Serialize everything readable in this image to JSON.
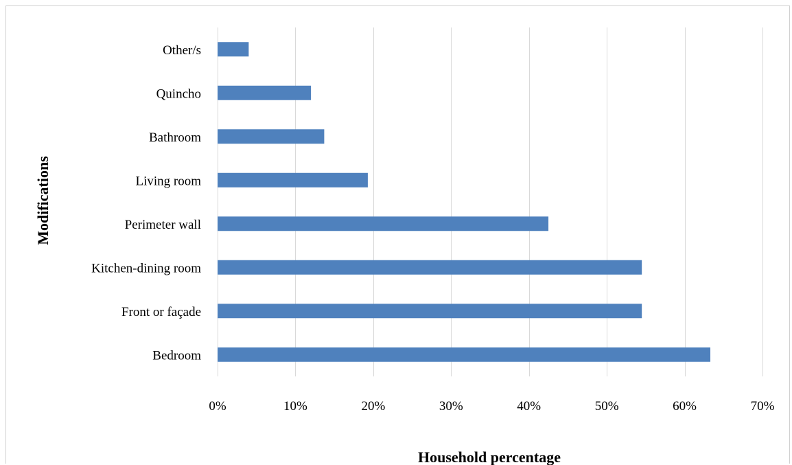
{
  "chart_data": {
    "type": "bar",
    "orientation": "horizontal",
    "categories": [
      "Other/s",
      "Quincho",
      "Bathroom",
      "Living room",
      "Perimeter wall",
      "Kitchen-dining room",
      "Front or façade",
      "Bedroom"
    ],
    "values": [
      4,
      12,
      13.7,
      19.3,
      42.5,
      54.5,
      54.5,
      63.3
    ],
    "xlabel": "Household percentage",
    "ylabel": "Modifications",
    "xlim": [
      0,
      70
    ],
    "xticks": [
      0,
      10,
      20,
      30,
      40,
      50,
      60,
      70
    ],
    "xtick_labels": [
      "0%",
      "10%",
      "20%",
      "30%",
      "40%",
      "50%",
      "60%",
      "70%"
    ],
    "grid": "vertical",
    "legend": "none",
    "bar_color": "#4f81bd"
  }
}
